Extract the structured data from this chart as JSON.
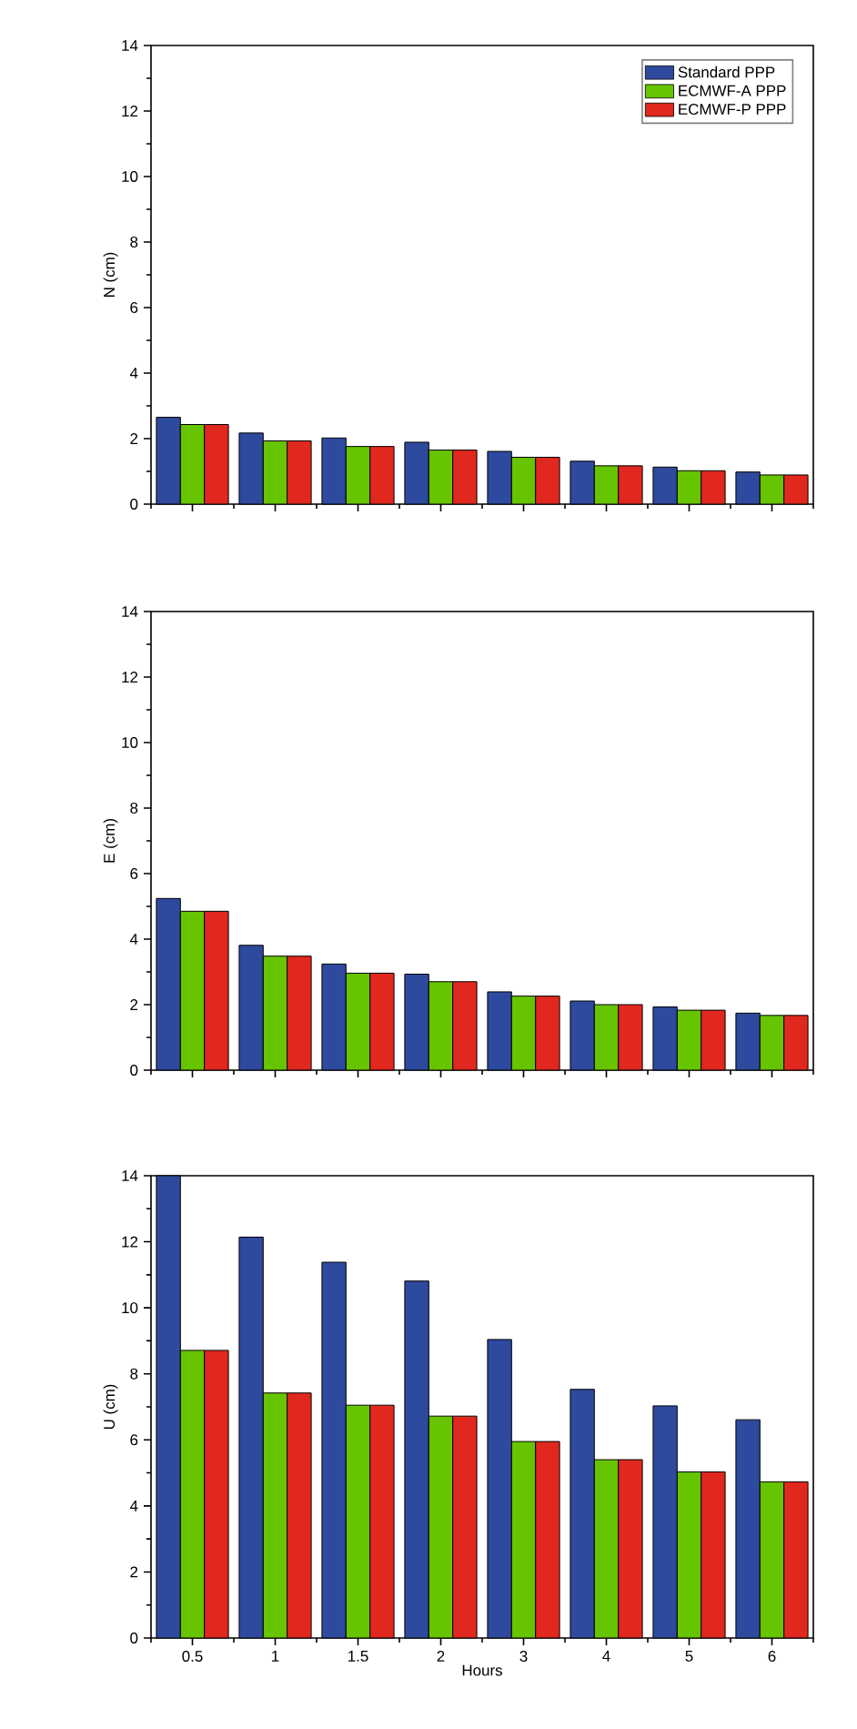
{
  "chart_data": [
    {
      "type": "bar",
      "categories": [
        "0.5",
        "1",
        "1.5",
        "2",
        "3",
        "4",
        "5",
        "6"
      ],
      "ylabel": "N (cm)",
      "ylim": [
        0,
        14
      ],
      "yticks": [
        0,
        2,
        4,
        6,
        8,
        10,
        12,
        14
      ],
      "legend": "top right",
      "tick_labels": "y",
      "series": [
        {
          "name": "Standard PPP",
          "color": "#2e4a9e",
          "values": [
            2.65,
            2.17,
            2.02,
            1.89,
            1.61,
            1.31,
            1.13,
            0.98
          ]
        },
        {
          "name": "ECMWF-A PPP",
          "color": "#66c400",
          "values": [
            2.43,
            1.93,
            1.76,
            1.65,
            1.43,
            1.17,
            1.02,
            0.89
          ]
        },
        {
          "name": "ECMWF-P PPP",
          "color": "#e0281e",
          "values": [
            2.43,
            1.93,
            1.76,
            1.65,
            1.43,
            1.17,
            1.02,
            0.89
          ]
        }
      ]
    },
    {
      "type": "bar",
      "categories": [
        "0.5",
        "1",
        "1.5",
        "2",
        "3",
        "4",
        "5",
        "6"
      ],
      "ylabel": "E (cm)",
      "ylim": [
        0,
        14
      ],
      "yticks": [
        0,
        2,
        4,
        6,
        8,
        10,
        12,
        14
      ],
      "tick_labels": "y",
      "series": [
        {
          "color": "#2e4a9e",
          "values": [
            5.24,
            3.81,
            3.24,
            2.93,
            2.39,
            2.11,
            1.93,
            1.74
          ]
        },
        {
          "color": "#66c400",
          "values": [
            4.85,
            3.48,
            2.96,
            2.7,
            2.26,
            2.0,
            1.83,
            1.67
          ]
        },
        {
          "color": "#e0281e",
          "values": [
            4.85,
            3.48,
            2.96,
            2.7,
            2.26,
            2.0,
            1.83,
            1.67
          ]
        }
      ]
    },
    {
      "type": "bar",
      "categories": [
        "0.5",
        "1",
        "1.5",
        "2",
        "3",
        "4",
        "5",
        "6"
      ],
      "xlabel": "Hours",
      "ylabel": "U (cm)",
      "ylim": [
        0,
        14
      ],
      "yticks": [
        0,
        2,
        4,
        6,
        8,
        10,
        12,
        14
      ],
      "series": [
        {
          "color": "#2e4a9e",
          "values": [
            14.0,
            12.14,
            11.38,
            10.81,
            9.04,
            7.53,
            7.03,
            6.61
          ]
        },
        {
          "color": "#66c400",
          "values": [
            8.71,
            7.42,
            7.05,
            6.72,
            5.95,
            5.4,
            5.03,
            4.73
          ]
        },
        {
          "color": "#e0281e",
          "values": [
            8.71,
            7.42,
            7.05,
            6.72,
            5.95,
            5.4,
            5.03,
            4.73
          ]
        }
      ]
    }
  ]
}
